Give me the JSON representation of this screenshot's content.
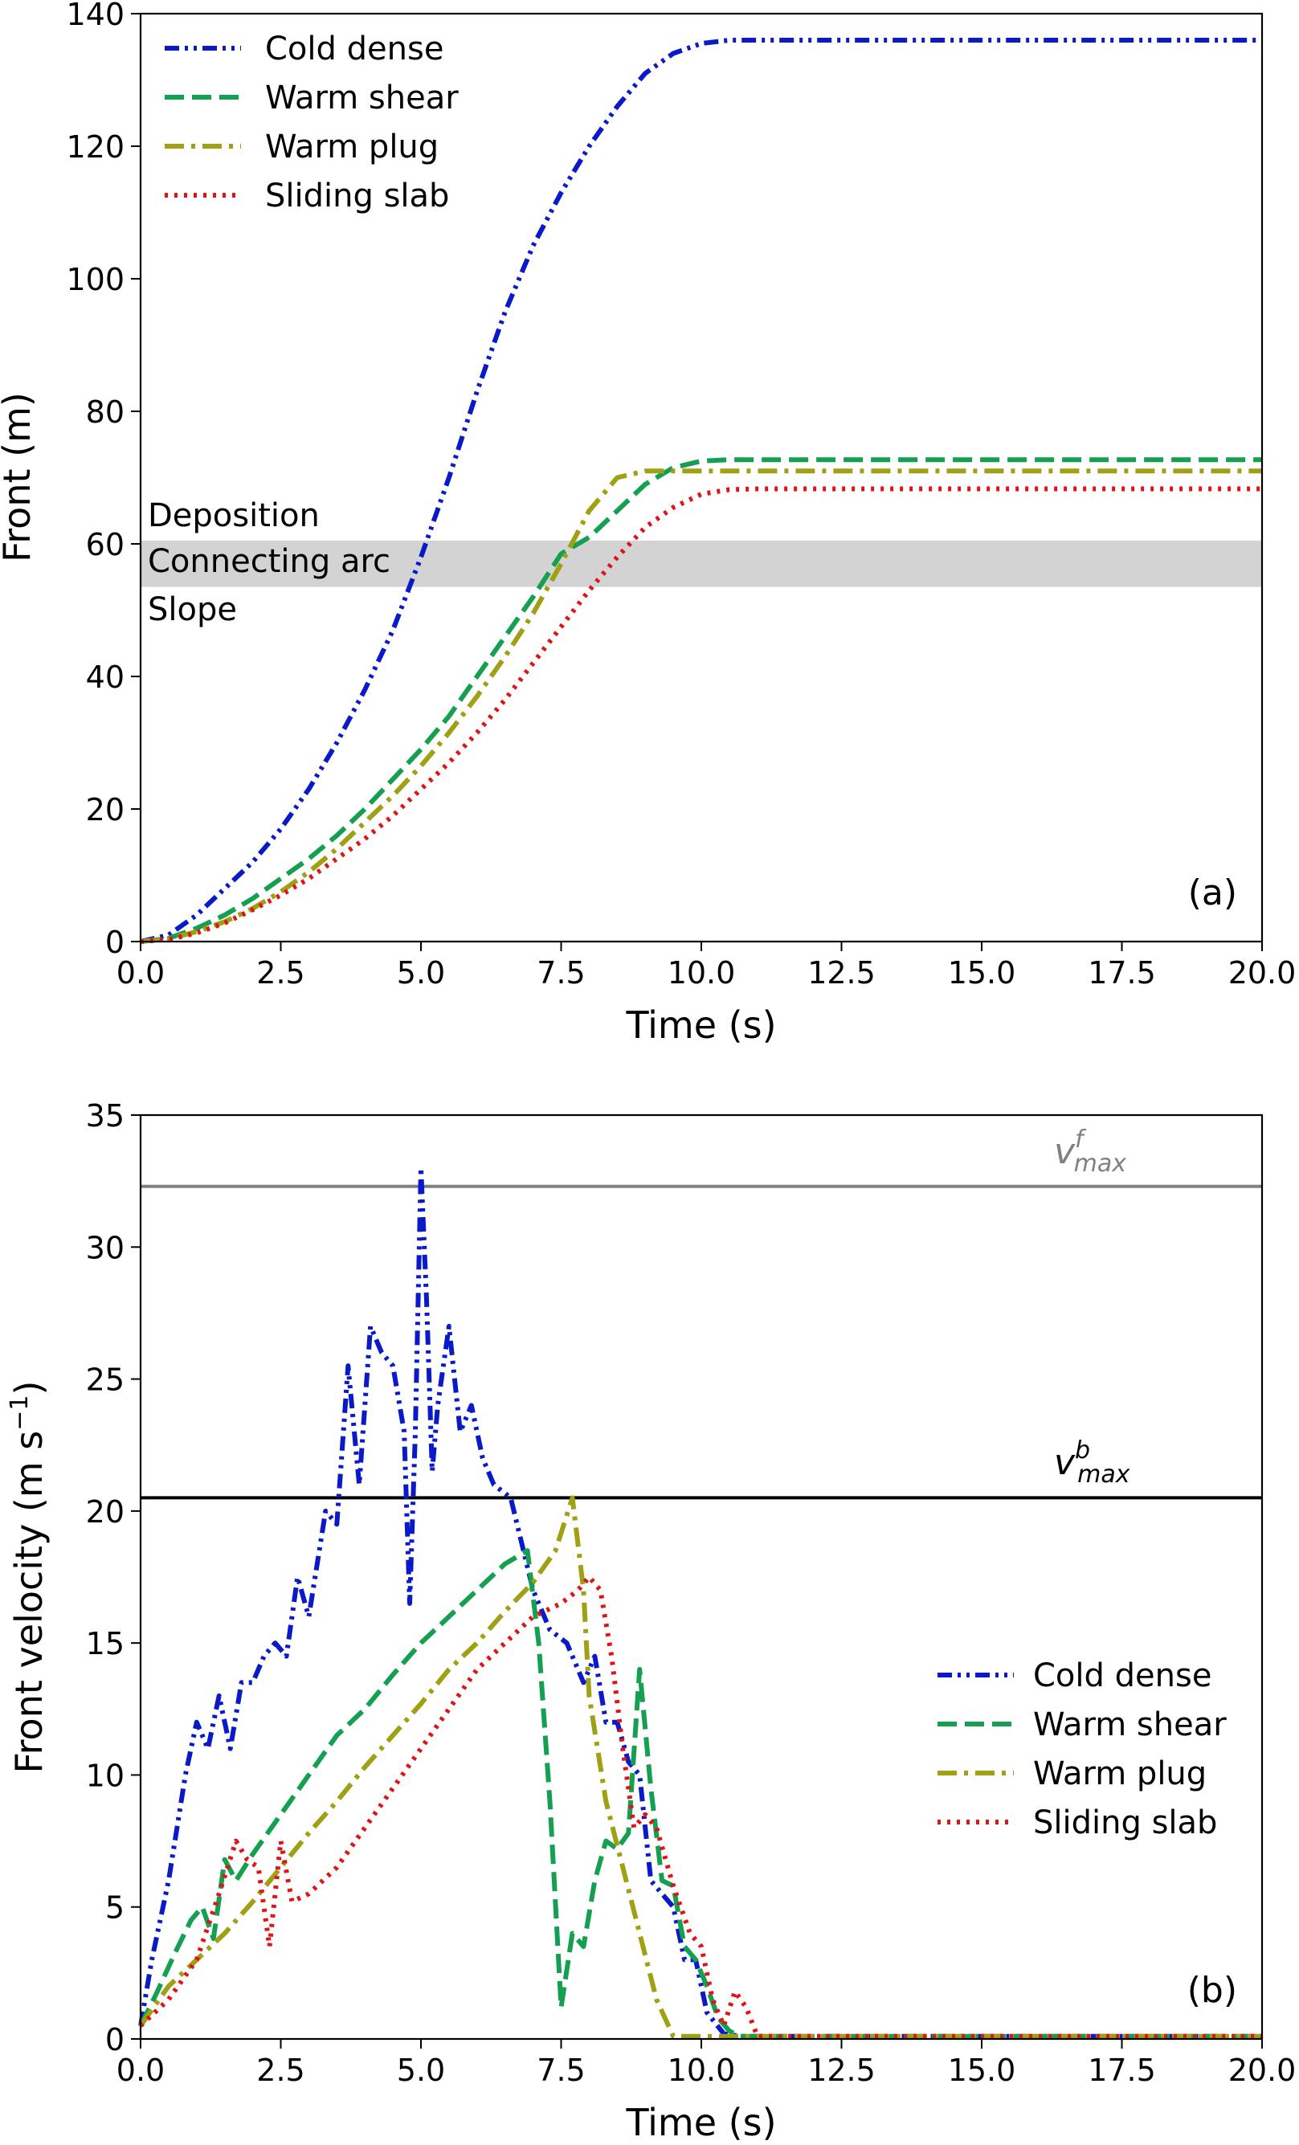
{
  "chart_data": [
    {
      "type": "line",
      "panel_label": "(a)",
      "xlabel": "Time (s)",
      "ylabel": "Front (m)",
      "xlim": [
        0,
        20
      ],
      "ylim": [
        0,
        140
      ],
      "xticks": [
        "0.0",
        "2.5",
        "5.0",
        "7.5",
        "10.0",
        "12.5",
        "15.0",
        "17.5",
        "20.0"
      ],
      "yticks": [
        "0",
        "20",
        "40",
        "60",
        "80",
        "100",
        "120",
        "140"
      ],
      "legend_position": "top-left",
      "grid": false,
      "band": {
        "y0": 53.5,
        "y1": 60.5,
        "color": "#d3d3d3"
      },
      "annotations": [
        "Deposition",
        "Connecting arc",
        "Slope"
      ],
      "series": [
        {
          "name": "Cold dense",
          "color": "#0a1ac8",
          "dash": "dashdotdot",
          "x": [
            0,
            0.5,
            1,
            1.5,
            2,
            2.5,
            3,
            3.5,
            4,
            4.5,
            5,
            5.5,
            6,
            6.5,
            7,
            7.5,
            8,
            8.5,
            9,
            9.5,
            10,
            10.5,
            11,
            12,
            14,
            16,
            18,
            20
          ],
          "y": [
            0,
            1,
            4,
            8,
            12,
            17,
            23,
            30,
            38,
            47,
            58,
            70,
            83,
            95,
            105,
            113,
            120,
            126,
            131,
            134,
            135.5,
            136,
            136,
            136,
            136,
            136,
            136,
            136
          ]
        },
        {
          "name": "Warm shear",
          "color": "#14a050",
          "dash": "dashed",
          "x": [
            0,
            0.5,
            1,
            1.5,
            2,
            2.5,
            3,
            3.5,
            4,
            4.5,
            5,
            5.5,
            6,
            6.5,
            7,
            7.5,
            8,
            8.5,
            9,
            9.5,
            10,
            10.5,
            11,
            12,
            14,
            16,
            18,
            20
          ],
          "y": [
            0,
            0.5,
            2,
            4,
            6.5,
            9.5,
            12.5,
            16,
            20,
            24.5,
            29,
            34,
            40,
            46,
            52,
            58.5,
            61,
            65,
            69,
            71.5,
            72.5,
            72.7,
            72.7,
            72.7,
            72.7,
            72.7,
            72.7,
            72.7
          ]
        },
        {
          "name": "Warm plug",
          "color": "#a0a014",
          "dash": "dashdot",
          "x": [
            0,
            0.5,
            1,
            1.5,
            2,
            2.5,
            3,
            3.5,
            4,
            4.5,
            5,
            5.5,
            6,
            6.5,
            7,
            7.5,
            8,
            8.5,
            9,
            9.5,
            10,
            10.5,
            11,
            12,
            14,
            16,
            18,
            20
          ],
          "y": [
            0,
            0.4,
            1.5,
            3,
            5,
            7.5,
            10.5,
            14,
            18,
            22,
            26.5,
            31.5,
            37,
            43,
            49.5,
            57,
            65,
            70,
            71,
            71,
            71,
            71,
            71,
            71,
            71,
            71,
            71,
            71
          ]
        },
        {
          "name": "Sliding slab",
          "color": "#e01414",
          "dash": "dotted",
          "x": [
            0,
            0.5,
            1,
            1.5,
            2,
            2.5,
            3,
            3.5,
            4,
            4.5,
            5,
            5.5,
            6,
            6.5,
            7,
            7.5,
            8,
            8.5,
            9,
            9.5,
            10,
            10.5,
            11,
            12,
            14,
            16,
            18,
            20
          ],
          "y": [
            0,
            0.3,
            1.3,
            2.8,
            4.8,
            7,
            9.5,
            12.5,
            15.5,
            19,
            23,
            27,
            31.5,
            36.5,
            42,
            47.5,
            53,
            58,
            62.5,
            65.5,
            67.5,
            68.2,
            68.3,
            68.3,
            68.3,
            68.3,
            68.3,
            68.3
          ]
        }
      ]
    },
    {
      "type": "line",
      "panel_label": "(b)",
      "xlabel": "Time (s)",
      "ylabel": "Front velocity (m s",
      "ylabel_sup": "−1",
      "ylabel_end": ")",
      "xlim": [
        0,
        20
      ],
      "ylim": [
        0,
        35
      ],
      "xticks": [
        "0.0",
        "2.5",
        "5.0",
        "7.5",
        "10.0",
        "12.5",
        "15.0",
        "17.5",
        "20.0"
      ],
      "yticks": [
        "0",
        "5",
        "10",
        "15",
        "20",
        "25",
        "30",
        "35"
      ],
      "legend_position": "center-right",
      "grid": false,
      "hlines": [
        {
          "y": 32.3,
          "color": "#808080",
          "label_base": "v",
          "label_sup": "f",
          "label_sub": "max"
        },
        {
          "y": 20.5,
          "color": "#000000",
          "label_base": "v",
          "label_sup": "b",
          "label_sub": "max"
        }
      ],
      "series": [
        {
          "name": "Cold dense",
          "color": "#0a1ac8",
          "dash": "dashdotdot",
          "x": [
            0,
            0.2,
            0.5,
            0.8,
            1.0,
            1.2,
            1.4,
            1.6,
            1.8,
            2.0,
            2.2,
            2.4,
            2.6,
            2.8,
            3.0,
            3.3,
            3.5,
            3.7,
            3.9,
            4.1,
            4.3,
            4.5,
            4.7,
            4.8,
            4.9,
            5.0,
            5.1,
            5.2,
            5.3,
            5.5,
            5.7,
            5.9,
            6.1,
            6.3,
            6.6,
            7.0,
            7.3,
            7.6,
            7.9,
            8.1,
            8.3,
            8.5,
            8.7,
            8.9,
            9.1,
            9.3,
            9.5,
            9.7,
            9.9,
            10.1,
            10.4,
            10.7,
            11,
            12,
            14,
            16,
            18,
            20
          ],
          "y": [
            0.5,
            3,
            6,
            10,
            12,
            11,
            13,
            11,
            13.5,
            13.5,
            14.5,
            15,
            14.5,
            17.5,
            16,
            20,
            19.5,
            25.5,
            21,
            27,
            26,
            25.5,
            23,
            16.5,
            23,
            33,
            28,
            21.5,
            24,
            27,
            23,
            24,
            22,
            21,
            20.5,
            17,
            15.5,
            15,
            13.5,
            14.5,
            12,
            12,
            10.5,
            10,
            6,
            5.5,
            5,
            3,
            3,
            1,
            0.2,
            0.1,
            0.1,
            0.1,
            0.1,
            0.1,
            0.1,
            0.1
          ]
        },
        {
          "name": "Warm shear",
          "color": "#14a050",
          "dash": "dashed",
          "x": [
            0,
            0.3,
            0.6,
            0.9,
            1.1,
            1.3,
            1.5,
            1.7,
            2.0,
            2.5,
            3.0,
            3.5,
            4.0,
            4.5,
            5.0,
            5.5,
            6.0,
            6.5,
            6.9,
            7.1,
            7.3,
            7.5,
            7.7,
            7.9,
            8.1,
            8.3,
            8.5,
            8.7,
            8.9,
            9.1,
            9.3,
            9.5,
            9.7,
            9.9,
            10.1,
            10.3,
            10.5,
            10.7,
            11,
            12,
            14,
            16,
            18,
            20
          ],
          "y": [
            0.5,
            1.8,
            3.2,
            4.5,
            5,
            3.8,
            6.8,
            6,
            7,
            8.5,
            10,
            11.5,
            12.5,
            13.8,
            15,
            16,
            17,
            18,
            18.5,
            15,
            9,
            1.2,
            4,
            3.5,
            6,
            7.5,
            7.2,
            7.8,
            14,
            9.5,
            6,
            5.8,
            3.5,
            3,
            2,
            0.8,
            0.3,
            0.1,
            0.1,
            0.1,
            0.1,
            0.1,
            0.1,
            0.1
          ]
        },
        {
          "name": "Warm plug",
          "color": "#a0a014",
          "dash": "dashdot",
          "x": [
            0,
            0.5,
            1.0,
            1.5,
            2.0,
            2.5,
            3.0,
            3.5,
            4.0,
            4.5,
            5.0,
            5.5,
            6.0,
            6.5,
            7.0,
            7.4,
            7.7,
            7.9,
            8.0,
            8.3,
            8.6,
            8.9,
            9.2,
            9.5,
            9.7,
            10,
            11,
            12,
            14,
            16,
            18,
            20
          ],
          "y": [
            0.5,
            2,
            3,
            4,
            5.2,
            6.5,
            7.8,
            9,
            10.3,
            11.5,
            12.7,
            14,
            15,
            16.2,
            17.3,
            18.5,
            20.5,
            17,
            13,
            9,
            6.5,
            4,
            1.5,
            0.1,
            0.1,
            0.1,
            0.1,
            0.1,
            0.1,
            0.1,
            0.1,
            0.1
          ]
        },
        {
          "name": "Sliding slab",
          "color": "#e01414",
          "dash": "dotted",
          "x": [
            0,
            0.5,
            1.0,
            1.4,
            1.7,
            1.9,
            2.1,
            2.3,
            2.5,
            2.7,
            3.0,
            3.5,
            4.0,
            4.5,
            5.0,
            5.5,
            6.0,
            6.5,
            7.0,
            7.5,
            7.8,
            8.0,
            8.2,
            8.4,
            8.6,
            8.8,
            9.0,
            9.2,
            9.5,
            9.8,
            10.0,
            10.2,
            10.4,
            10.6,
            10.8,
            11.0,
            12,
            14,
            16,
            18,
            20
          ],
          "y": [
            0.5,
            1.5,
            3,
            5.5,
            7.5,
            6.8,
            6.5,
            3.5,
            7.5,
            5.2,
            5.5,
            6.5,
            8,
            9.5,
            11,
            12.5,
            14,
            15,
            16,
            16.5,
            17,
            17.5,
            17,
            14.5,
            11,
            8,
            8.5,
            8,
            5.8,
            4,
            3.5,
            1.5,
            0.5,
            1.8,
            1.2,
            0.1,
            0.1,
            0.1,
            0.1,
            0.1,
            0.1
          ]
        }
      ]
    }
  ]
}
